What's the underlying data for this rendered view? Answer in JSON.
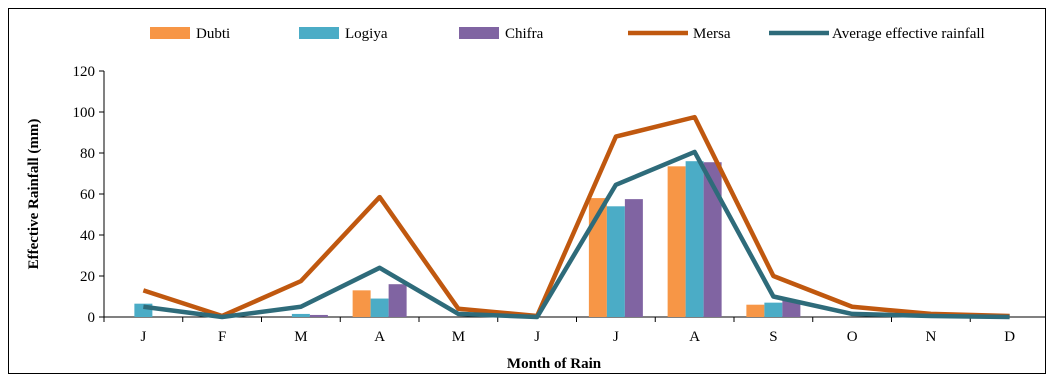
{
  "chart_data": {
    "type": "bar",
    "title": "",
    "xlabel": "Month of Rain",
    "ylabel": "Effective Rainfall (mm)",
    "ylim": [
      0,
      120
    ],
    "yticks": [
      "0",
      "20",
      "40",
      "60",
      "80",
      "100",
      "120"
    ],
    "categories": [
      "J",
      "F",
      "M",
      "A",
      "M",
      "J",
      "J",
      "A",
      "S",
      "O",
      "N",
      "D"
    ],
    "legend_position": "top",
    "bar_series": [
      {
        "name": "Dubti",
        "color": "#F79646",
        "values": [
          0,
          0,
          0,
          13,
          0,
          0,
          58,
          73.5,
          6,
          0,
          0,
          0
        ]
      },
      {
        "name": "Logiya",
        "color": "#4BACC6",
        "values": [
          6.5,
          0,
          1.5,
          9,
          0,
          0,
          54,
          76,
          7,
          0,
          0,
          0
        ]
      },
      {
        "name": "Chifra",
        "color": "#8064A2",
        "values": [
          0,
          0,
          1,
          16,
          0,
          0,
          57.5,
          75.5,
          8,
          0,
          0,
          0
        ]
      }
    ],
    "line_series": [
      {
        "name": "Mersa",
        "color": "#C0580F",
        "values": [
          13,
          0.5,
          17.5,
          58.5,
          4,
          0.5,
          88,
          97.5,
          20,
          5,
          1.5,
          0.5
        ]
      },
      {
        "name": "Average effective rainfall",
        "color": "#2E6B7A",
        "values": [
          5,
          0,
          5,
          24,
          1.5,
          0,
          64.5,
          80.5,
          10,
          1.5,
          0.5,
          0
        ]
      }
    ]
  }
}
